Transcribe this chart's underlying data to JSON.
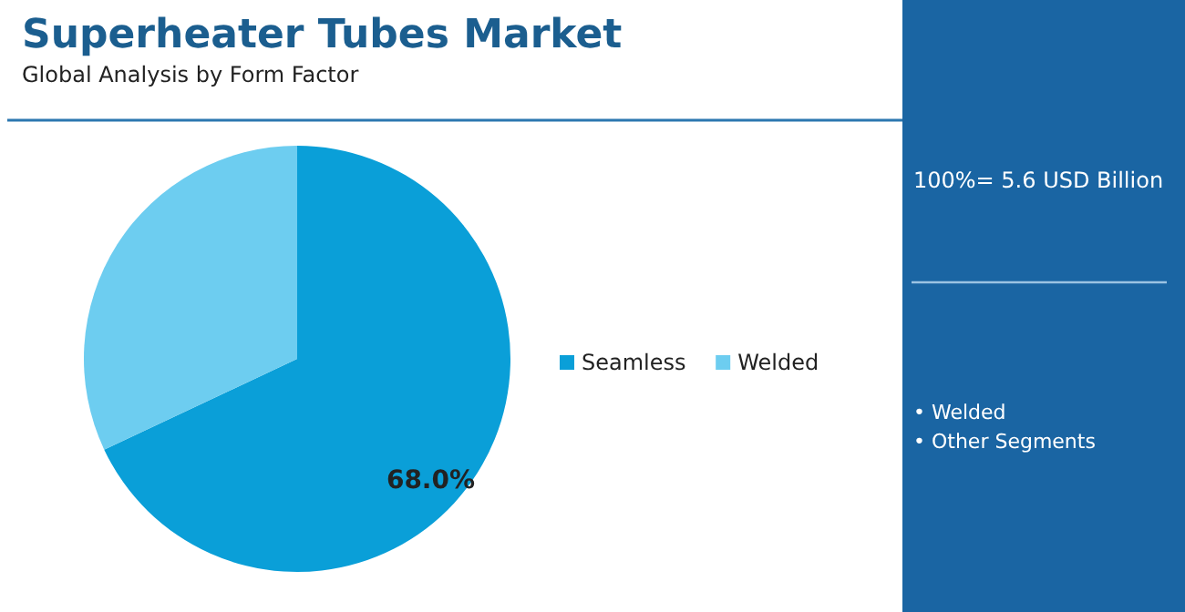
{
  "chart_data": {
    "type": "pie",
    "title": "Superheater Tubes Market",
    "subtitle": "Global Analysis by Form Factor",
    "categories": [
      "Seamless",
      "Welded"
    ],
    "values": [
      68.0,
      32.0
    ],
    "colors": [
      "#0a9fd8",
      "#6dcdf0"
    ],
    "value_labels": [
      "68.0%",
      null
    ],
    "legend": "right",
    "annotations": [
      "100%= 5.6 USD Billion",
      "• Welded",
      "• Other Segments"
    ]
  }
}
